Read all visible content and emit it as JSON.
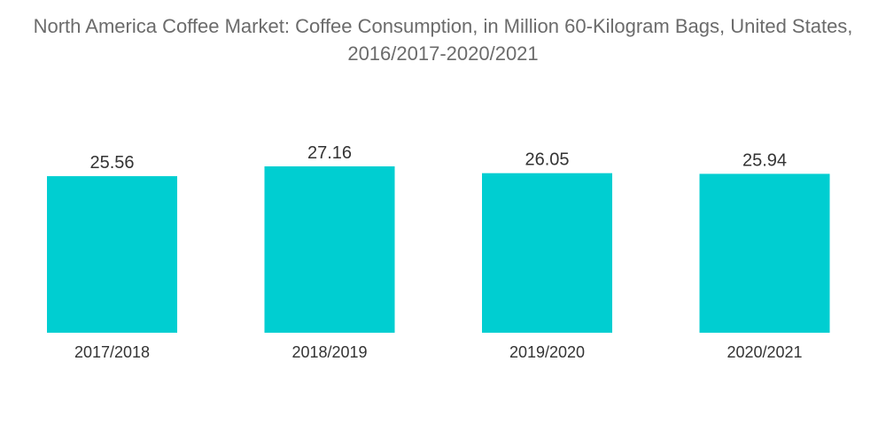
{
  "chart_data": {
    "type": "bar",
    "title": "North America Coffee Market: Coffee Consumption, in Million 60-Kilogram Bags, United States, 2016/2017-2020/2021",
    "categories": [
      "2017/2018",
      "2018/2019",
      "2019/2020",
      "2020/2021"
    ],
    "values": [
      25.56,
      27.16,
      26.05,
      25.94
    ],
    "data_labels": [
      "25.56",
      "27.16",
      "26.05",
      "25.94"
    ],
    "xlabel": "",
    "ylabel": "",
    "ylim": [
      0,
      27.16
    ],
    "grid": false,
    "legend": "none",
    "bar_color": "#00CED1"
  }
}
